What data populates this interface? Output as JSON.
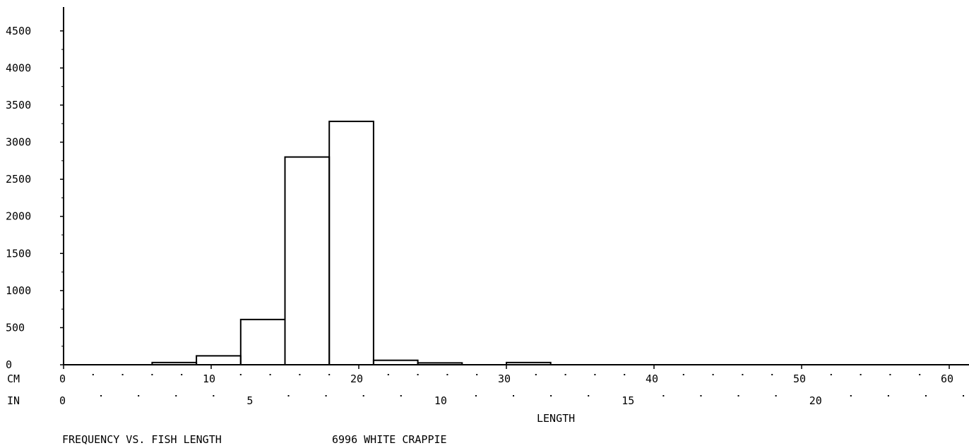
{
  "chart_data": {
    "type": "bar",
    "histogram": true,
    "x_unit_primary": "CM",
    "x_unit_secondary": "IN",
    "xlabel": "LENGTH",
    "title": "FREQUENCY VS. FISH LENGTH",
    "subtitle": "6996 WHITE CRAPPIE",
    "xlim": [
      0,
      61
    ],
    "ylim": [
      0,
      4700
    ],
    "cm_ticks": [
      0,
      10,
      20,
      30,
      40,
      50,
      60
    ],
    "in_ticks": [
      0,
      5,
      10,
      15,
      20
    ],
    "y_ticks": [
      0,
      500,
      1000,
      1500,
      2000,
      2500,
      3000,
      3500,
      4000,
      4500
    ],
    "bins": [
      {
        "from": 6,
        "to": 9,
        "value": 30
      },
      {
        "from": 9,
        "to": 12,
        "value": 120
      },
      {
        "from": 12,
        "to": 15,
        "value": 610
      },
      {
        "from": 15,
        "to": 18,
        "value": 2800
      },
      {
        "from": 18,
        "to": 21,
        "value": 3280
      },
      {
        "from": 21,
        "to": 24,
        "value": 60
      },
      {
        "from": 24,
        "to": 27,
        "value": 25
      },
      {
        "from": 27,
        "to": 30,
        "value": 0
      },
      {
        "from": 30,
        "to": 33,
        "value": 30
      }
    ],
    "colors": {
      "ink": "#000000",
      "background": "#ffffff"
    }
  }
}
